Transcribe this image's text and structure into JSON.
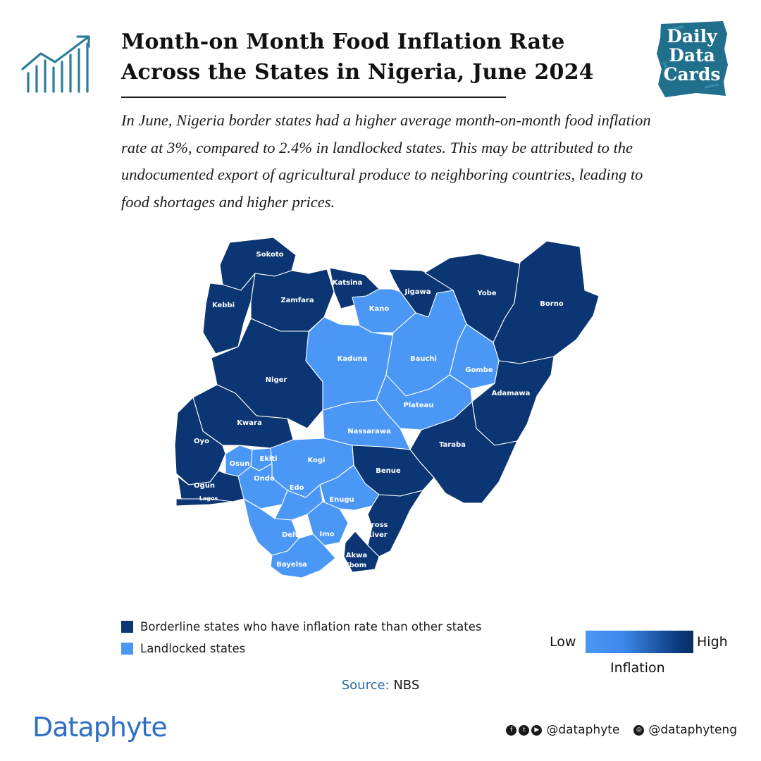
{
  "header": {
    "title_line1": "Month-on Month Food Inflation Rate",
    "title_line2": "Across the States in Nigeria, June 2024",
    "badge": [
      "Daily",
      "Data",
      "Cards"
    ]
  },
  "subtitle": "In June, Nigeria border states had a higher average month-on-month food inflation rate at 3%, compared to 2.4% in landlocked states. This may be attributed to the undocumented export of agricultural produce to neighboring countries, leading to food shortages and higher prices.",
  "map": {
    "colors": {
      "borderline": "#0b3573",
      "landlocked": "#4a97f5",
      "outline": "#ffffff"
    },
    "states": [
      {
        "name": "Sokoto",
        "group": "borderline"
      },
      {
        "name": "Katsina",
        "group": "borderline"
      },
      {
        "name": "Jigawa",
        "group": "borderline"
      },
      {
        "name": "Yobe",
        "group": "borderline"
      },
      {
        "name": "Borno",
        "group": "borderline"
      },
      {
        "name": "Kebbi",
        "group": "borderline"
      },
      {
        "name": "Zamfara",
        "group": "borderline"
      },
      {
        "name": "Kano",
        "group": "landlocked"
      },
      {
        "name": "Kaduna",
        "group": "landlocked"
      },
      {
        "name": "Bauchi",
        "group": "landlocked"
      },
      {
        "name": "Gombe",
        "group": "landlocked"
      },
      {
        "name": "Niger",
        "group": "borderline"
      },
      {
        "name": "Adamawa",
        "group": "borderline"
      },
      {
        "name": "Plateau",
        "group": "landlocked"
      },
      {
        "name": "Kwara",
        "group": "borderline"
      },
      {
        "name": "Nassarawa",
        "group": "landlocked"
      },
      {
        "name": "Oyo",
        "group": "borderline"
      },
      {
        "name": "Taraba",
        "group": "borderline"
      },
      {
        "name": "Osun",
        "group": "landlocked"
      },
      {
        "name": "Ekiti",
        "group": "landlocked"
      },
      {
        "name": "Kogi",
        "group": "landlocked"
      },
      {
        "name": "Ondo",
        "group": "landlocked"
      },
      {
        "name": "Benue",
        "group": "borderline"
      },
      {
        "name": "Ogun",
        "group": "borderline"
      },
      {
        "name": "Edo",
        "group": "landlocked"
      },
      {
        "name": "Lagos",
        "group": "borderline"
      },
      {
        "name": "Enugu",
        "group": "landlocked"
      },
      {
        "name": "Cross River",
        "group": "borderline"
      },
      {
        "name": "Delta",
        "group": "landlocked"
      },
      {
        "name": "Imo",
        "group": "landlocked"
      },
      {
        "name": "Akwa Ibom",
        "group": "borderline"
      },
      {
        "name": "Bayelsa",
        "group": "landlocked"
      }
    ]
  },
  "legend": {
    "items": [
      {
        "label": "Borderline states who have inflation rate than other states",
        "color": "#0b3573"
      },
      {
        "label": "Landlocked states",
        "color": "#4a97f5"
      }
    ],
    "scale": {
      "low": "Low",
      "high": "High",
      "caption": "Inflation"
    }
  },
  "source": {
    "label": "Source:",
    "value": "NBS"
  },
  "footer": {
    "brand": "Dataphyte",
    "handle1": "@dataphyte",
    "handle2": "@dataphyteng",
    "icons": [
      "facebook-icon",
      "twitter-icon",
      "youtube-icon",
      "instagram-icon"
    ]
  }
}
